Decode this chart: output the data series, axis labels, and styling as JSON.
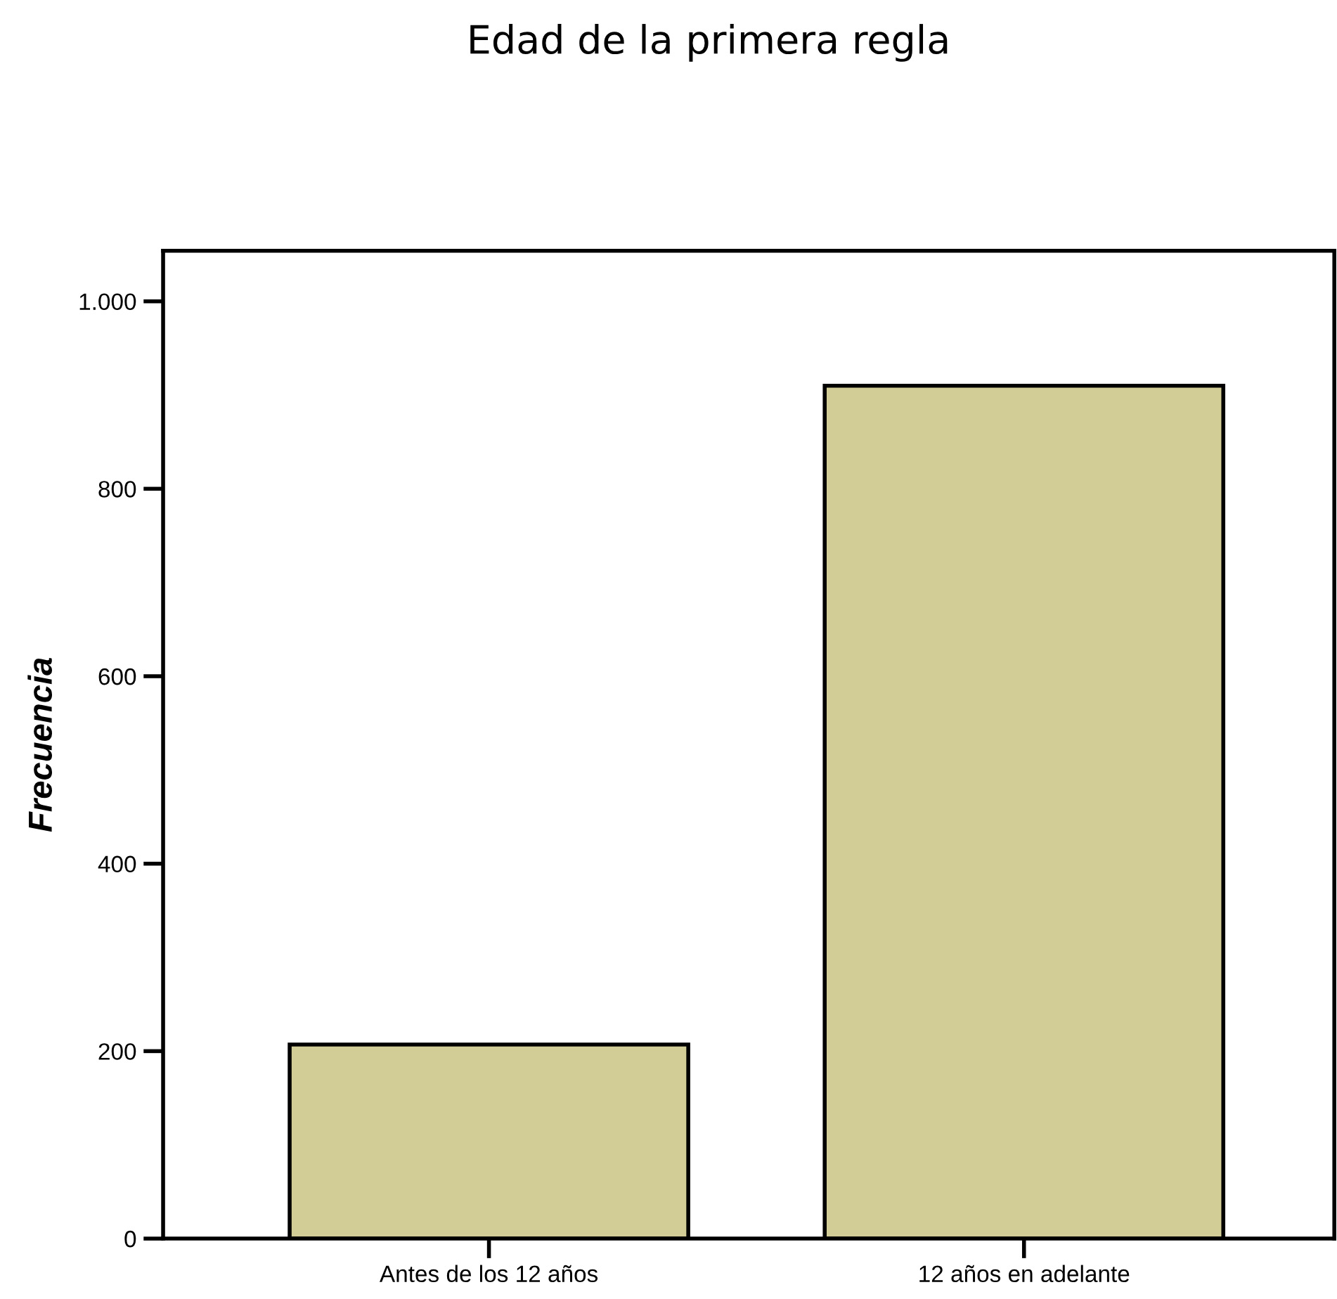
{
  "chart_data": {
    "type": "bar",
    "title": "Edad de la primera regla",
    "ylabel": "Frecuencia",
    "categories": [
      "Antes de los 12 años",
      "12 años en adelante"
    ],
    "values": [
      207,
      910
    ],
    "color": "#d2cc97",
    "ylim": [
      0,
      1054
    ],
    "yticks": [
      0,
      200,
      400,
      600,
      800,
      {
        "value": 1000,
        "label": "1.000"
      }
    ],
    "grid": false,
    "legend": false
  }
}
